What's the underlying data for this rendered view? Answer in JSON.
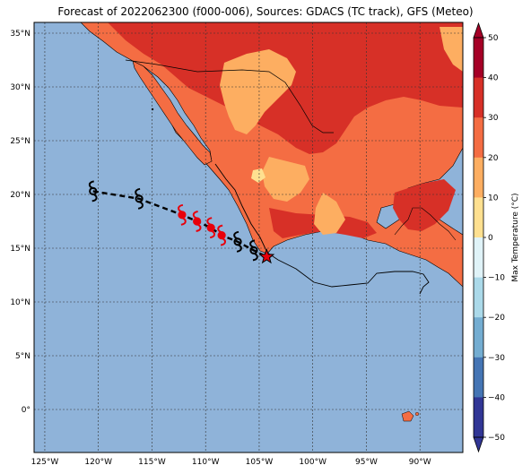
{
  "title": "Forecast of 2022062300 (f000-006), Sources: GDACS (TC track), GFS (Meteo)",
  "map": {
    "lon_range": [
      -126,
      -86
    ],
    "lat_range": [
      -4,
      36
    ],
    "lat_ticks": [
      {
        "value": 35,
        "label": "35°N"
      },
      {
        "value": 30,
        "label": "30°N"
      },
      {
        "value": 25,
        "label": "25°N"
      },
      {
        "value": 20,
        "label": "20°N"
      },
      {
        "value": 15,
        "label": "15°N"
      },
      {
        "value": 10,
        "label": "10°N"
      },
      {
        "value": 5,
        "label": "5°N"
      },
      {
        "value": 0,
        "label": "0°"
      }
    ],
    "lon_ticks": [
      {
        "value": -125,
        "label": "125°W"
      },
      {
        "value": -120,
        "label": "120°W"
      },
      {
        "value": -115,
        "label": "115°W"
      },
      {
        "value": -110,
        "label": "110°W"
      },
      {
        "value": -105,
        "label": "105°W"
      },
      {
        "value": -100,
        "label": "100°W"
      },
      {
        "value": -95,
        "label": "95°W"
      },
      {
        "value": -90,
        "label": "90°W"
      }
    ],
    "colors": {
      "ocean": "#8fb3d9",
      "hot": "#d73027",
      "warm": "#f46d43",
      "mild": "#fdae61",
      "cool": "#fee090",
      "border": "#000000",
      "track_past": "#000000",
      "track_forecast": "#e8000b"
    }
  },
  "track": {
    "points": [
      {
        "lon": -120.5,
        "lat": 20.3,
        "color": "black"
      },
      {
        "lon": -116.2,
        "lat": 19.6,
        "color": "black"
      },
      {
        "lon": -112.2,
        "lat": 18.1,
        "color": "red"
      },
      {
        "lon": -110.8,
        "lat": 17.5,
        "color": "red"
      },
      {
        "lon": -109.5,
        "lat": 16.9,
        "color": "red"
      },
      {
        "lon": -108.5,
        "lat": 16.2,
        "color": "red"
      },
      {
        "lon": -107.0,
        "lat": 15.6,
        "color": "black"
      },
      {
        "lon": -105.5,
        "lat": 14.8,
        "color": "black"
      }
    ],
    "current_position": {
      "lon": -104.3,
      "lat": 14.2
    }
  },
  "colorbar": {
    "label": "Max Temperature (°C)",
    "ticks": [
      50,
      40,
      30,
      20,
      10,
      0,
      -10,
      -20,
      -30,
      -40,
      -50
    ],
    "tick_labels": [
      "50",
      "40",
      "30",
      "20",
      "10",
      "0",
      "−10",
      "−20",
      "−30",
      "−40",
      "−50"
    ],
    "colors": [
      "#a50026",
      "#d73027",
      "#f46d43",
      "#fdae61",
      "#fee090",
      "#e0f3f8",
      "#abd9e9",
      "#74add1",
      "#4575b4",
      "#313695"
    ]
  }
}
